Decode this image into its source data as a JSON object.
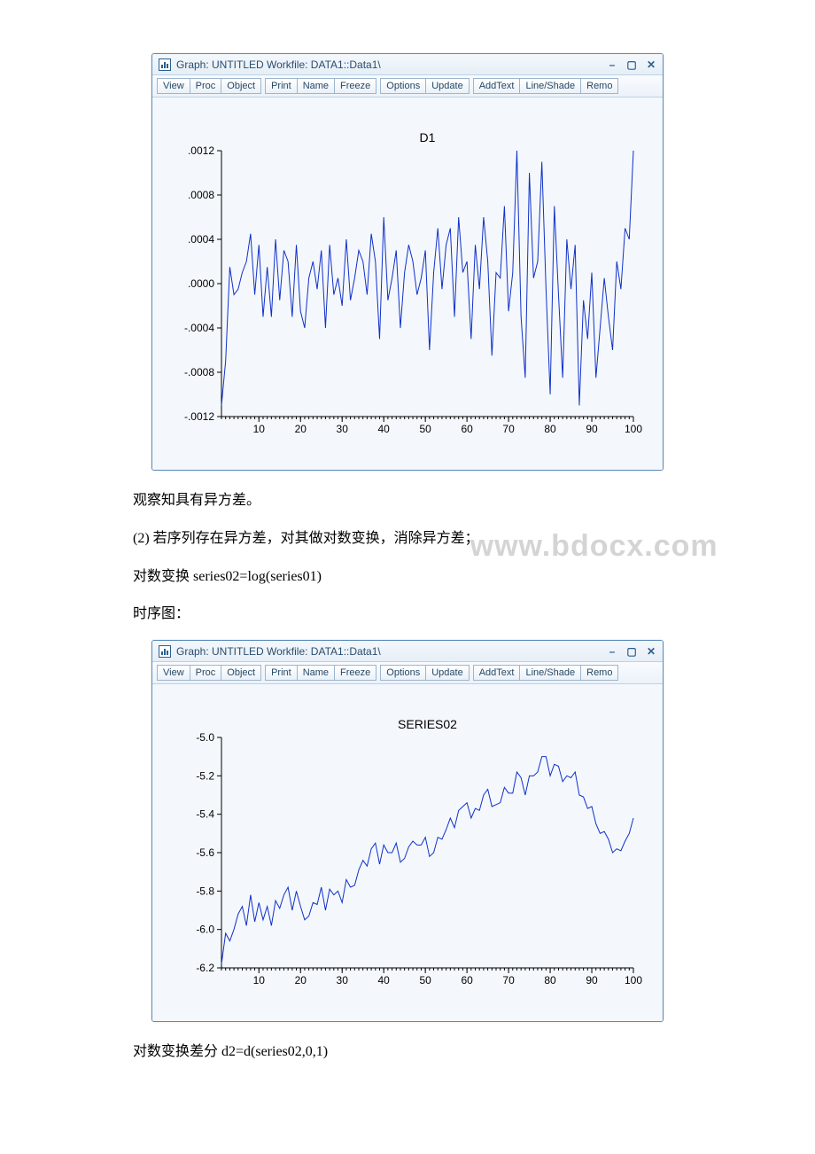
{
  "watermark": "www.bdocx.com",
  "paragraphs": {
    "p1": "观察知具有异方差。",
    "p2": " (2) 若序列存在异方差，对其做对数变换，消除异方差；",
    "p3": "对数变换 series02=log(series01)",
    "p4": "时序图：",
    "p5": "对数变换差分 d2=d(series02,0,1)"
  },
  "window1": {
    "title_text": "Graph: UNTITLED  Workfile: DATA1::Data1\\",
    "toolbar_groups": [
      [
        "View",
        "Proc",
        "Object"
      ],
      [
        "Print",
        "Name",
        "Freeze"
      ],
      [
        "Options",
        "Update"
      ],
      [
        "AddText",
        "Line/Shade",
        "Remo"
      ]
    ],
    "chart": {
      "type": "line",
      "title": "D1",
      "series_color": "#1030c8",
      "background_color": "#f4f8fc",
      "axis_color": "#000000",
      "font_family": "Arial",
      "title_fontsize": 14,
      "label_fontsize": 12,
      "x_ticks": [
        10,
        20,
        30,
        40,
        50,
        60,
        70,
        80,
        90,
        100
      ],
      "x_minor": true,
      "xlim": [
        1,
        100
      ],
      "ylim": [
        -0.0012,
        0.0012
      ],
      "y_ticks": [
        -0.0012,
        -0.0008,
        -0.0004,
        0.0,
        0.0004,
        0.0008,
        0.0012
      ],
      "y_tick_labels": [
        "-.0012",
        "-.0008",
        "-.0004",
        ".0000",
        ".0004",
        ".0008",
        ".0012"
      ],
      "data": [
        -0.0011,
        -0.0007,
        0.00015,
        -0.0001,
        -5e-05,
        0.0001,
        0.0002,
        0.00045,
        -0.0001,
        0.00035,
        -0.0003,
        0.00015,
        -0.0003,
        0.0004,
        -0.00015,
        0.0003,
        0.0002,
        -0.0003,
        0.00035,
        -0.00025,
        -0.0004,
        5e-05,
        0.0002,
        -5e-05,
        0.0003,
        -0.0004,
        0.00035,
        -0.0001,
        5e-05,
        -0.0002,
        0.0004,
        -0.00015,
        5e-05,
        0.0003,
        0.0002,
        -0.0001,
        0.00045,
        0.0002,
        -0.0005,
        0.0006,
        -0.00015,
        5e-05,
        0.0003,
        -0.0004,
        0.0001,
        0.00035,
        0.0002,
        -0.0001,
        5e-05,
        0.0003,
        -0.0006,
        0.0001,
        0.0005,
        -5e-05,
        0.00035,
        0.0005,
        -0.0003,
        0.0006,
        0.0001,
        0.0002,
        -0.0005,
        0.00035,
        -5e-05,
        0.0006,
        0.0002,
        -0.00065,
        0.0001,
        5e-05,
        0.0007,
        -0.00025,
        0.0001,
        0.0012,
        -0.0003,
        -0.00085,
        0.001,
        5e-05,
        0.0002,
        0.0011,
        -5e-05,
        -0.001,
        0.0007,
        -0.0001,
        -0.00085,
        0.0004,
        -5e-05,
        0.00035,
        -0.0011,
        -0.00015,
        -0.0005,
        0.0001,
        -0.00085,
        -0.0004,
        5e-05,
        -0.0003,
        -0.0006,
        0.0002,
        -5e-05,
        0.0005,
        0.0004,
        0.0012
      ]
    }
  },
  "window2": {
    "title_text": "Graph: UNTITLED  Workfile: DATA1::Data1\\",
    "toolbar_groups": [
      [
        "View",
        "Proc",
        "Object"
      ],
      [
        "Print",
        "Name",
        "Freeze"
      ],
      [
        "Options",
        "Update"
      ],
      [
        "AddText",
        "Line/Shade",
        "Remo"
      ]
    ],
    "chart": {
      "type": "line",
      "title": "SERIES02",
      "series_color": "#1030c8",
      "background_color": "#f4f8fc",
      "axis_color": "#000000",
      "font_family": "Arial",
      "title_fontsize": 14,
      "label_fontsize": 12,
      "x_ticks": [
        10,
        20,
        30,
        40,
        50,
        60,
        70,
        80,
        90,
        100
      ],
      "x_minor": true,
      "xlim": [
        1,
        100
      ],
      "ylim": [
        -6.2,
        -5.0
      ],
      "y_ticks": [
        -6.2,
        -6.0,
        -5.8,
        -5.6,
        -5.4,
        -5.2,
        -5.0
      ],
      "y_tick_labels": [
        "-6.2",
        "-6.0",
        "-5.8",
        "-5.6",
        "-5.4",
        "-5.2",
        "-5.0"
      ],
      "data": [
        -6.18,
        -6.02,
        -6.06,
        -6.0,
        -5.92,
        -5.88,
        -5.98,
        -5.82,
        -5.96,
        -5.86,
        -5.95,
        -5.88,
        -5.98,
        -5.85,
        -5.89,
        -5.82,
        -5.78,
        -5.9,
        -5.8,
        -5.88,
        -5.95,
        -5.93,
        -5.86,
        -5.87,
        -5.78,
        -5.9,
        -5.79,
        -5.82,
        -5.8,
        -5.86,
        -5.74,
        -5.78,
        -5.77,
        -5.69,
        -5.64,
        -5.67,
        -5.58,
        -5.55,
        -5.66,
        -5.56,
        -5.6,
        -5.6,
        -5.55,
        -5.65,
        -5.63,
        -5.57,
        -5.54,
        -5.56,
        -5.56,
        -5.52,
        -5.62,
        -5.6,
        -5.52,
        -5.53,
        -5.48,
        -5.42,
        -5.47,
        -5.38,
        -5.36,
        -5.34,
        -5.42,
        -5.37,
        -5.38,
        -5.3,
        -5.27,
        -5.36,
        -5.35,
        -5.34,
        -5.26,
        -5.29,
        -5.29,
        -5.18,
        -5.21,
        -5.3,
        -5.2,
        -5.2,
        -5.18,
        -5.1,
        -5.1,
        -5.2,
        -5.14,
        -5.15,
        -5.23,
        -5.2,
        -5.21,
        -5.18,
        -5.3,
        -5.31,
        -5.37,
        -5.36,
        -5.45,
        -5.5,
        -5.49,
        -5.53,
        -5.6,
        -5.58,
        -5.59,
        -5.54,
        -5.5,
        -5.42
      ]
    }
  }
}
